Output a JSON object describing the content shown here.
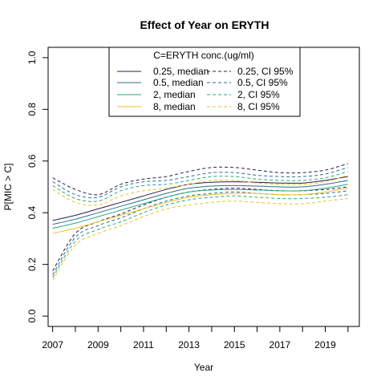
{
  "chart_data": {
    "type": "line",
    "title": "Effect of Year on ERYTH",
    "xlabel": "Year",
    "ylabel": "P[MIC > C]",
    "xlim": [
      2006.8,
      2020.5
    ],
    "ylim": [
      -0.04,
      1.04
    ],
    "xticks": [
      "2007",
      "2009",
      "2011",
      "2013",
      "2015",
      "2017",
      "2019"
    ],
    "yticks": [
      "0.0",
      "0.2",
      "0.4",
      "0.6",
      "0.8",
      "1.0"
    ],
    "legend": {
      "title": "C=ERYTH conc.(ug/ml)",
      "position": "top-center",
      "median_labels": [
        "0.25, median",
        "0.5, median",
        "2, median",
        "8, median"
      ],
      "ci_labels": [
        "0.25, CI 95%",
        "0.5, CI 95%",
        "2, CI 95%",
        "8, CI 95%"
      ]
    },
    "x": [
      2007,
      2008,
      2009,
      2010,
      2011,
      2012,
      2013,
      2014,
      2015,
      2016,
      2017,
      2018,
      2019,
      2020
    ],
    "series": [
      {
        "name": "0.25",
        "color": "#2a1b4a",
        "median": [
          0.37,
          0.39,
          0.415,
          0.44,
          0.465,
          0.49,
          0.51,
          0.518,
          0.52,
          0.518,
          0.515,
          0.515,
          0.525,
          0.54
        ],
        "ci_upper": [
          0.535,
          0.49,
          0.47,
          0.51,
          0.53,
          0.54,
          0.56,
          0.575,
          0.575,
          0.565,
          0.555,
          0.555,
          0.565,
          0.59
        ],
        "ci_lower": [
          0.175,
          0.32,
          0.365,
          0.395,
          0.43,
          0.46,
          0.48,
          0.49,
          0.495,
          0.49,
          0.485,
          0.485,
          0.49,
          0.5
        ]
      },
      {
        "name": "0.5",
        "color": "#2e6e8e",
        "median": [
          0.355,
          0.375,
          0.4,
          0.425,
          0.45,
          0.475,
          0.495,
          0.503,
          0.505,
          0.503,
          0.5,
          0.5,
          0.51,
          0.525
        ],
        "ci_upper": [
          0.52,
          0.47,
          0.46,
          0.5,
          0.52,
          0.525,
          0.54,
          0.555,
          0.555,
          0.545,
          0.54,
          0.54,
          0.55,
          0.575
        ],
        "ci_lower": [
          0.16,
          0.305,
          0.35,
          0.38,
          0.415,
          0.445,
          0.465,
          0.475,
          0.48,
          0.475,
          0.47,
          0.47,
          0.475,
          0.485
        ]
      },
      {
        "name": "2",
        "color": "#23a883",
        "median": [
          0.34,
          0.36,
          0.385,
          0.41,
          0.435,
          0.46,
          0.48,
          0.488,
          0.49,
          0.488,
          0.485,
          0.485,
          0.495,
          0.51
        ],
        "ci_upper": [
          0.505,
          0.455,
          0.445,
          0.485,
          0.505,
          0.51,
          0.525,
          0.54,
          0.54,
          0.53,
          0.525,
          0.525,
          0.535,
          0.56
        ],
        "ci_lower": [
          0.15,
          0.29,
          0.335,
          0.365,
          0.4,
          0.43,
          0.45,
          0.46,
          0.465,
          0.46,
          0.455,
          0.455,
          0.46,
          0.47
        ]
      },
      {
        "name": "8",
        "color": "#f0c020",
        "median": [
          0.32,
          0.34,
          0.365,
          0.39,
          0.415,
          0.44,
          0.46,
          0.47,
          0.475,
          0.475,
          0.47,
          0.47,
          0.48,
          0.495
        ],
        "ci_upper": [
          0.49,
          0.44,
          0.43,
          0.465,
          0.485,
          0.495,
          0.51,
          0.525,
          0.525,
          0.515,
          0.51,
          0.51,
          0.52,
          0.545
        ],
        "ci_lower": [
          0.14,
          0.275,
          0.32,
          0.35,
          0.385,
          0.415,
          0.43,
          0.44,
          0.445,
          0.44,
          0.435,
          0.435,
          0.445,
          0.455
        ]
      }
    ]
  }
}
